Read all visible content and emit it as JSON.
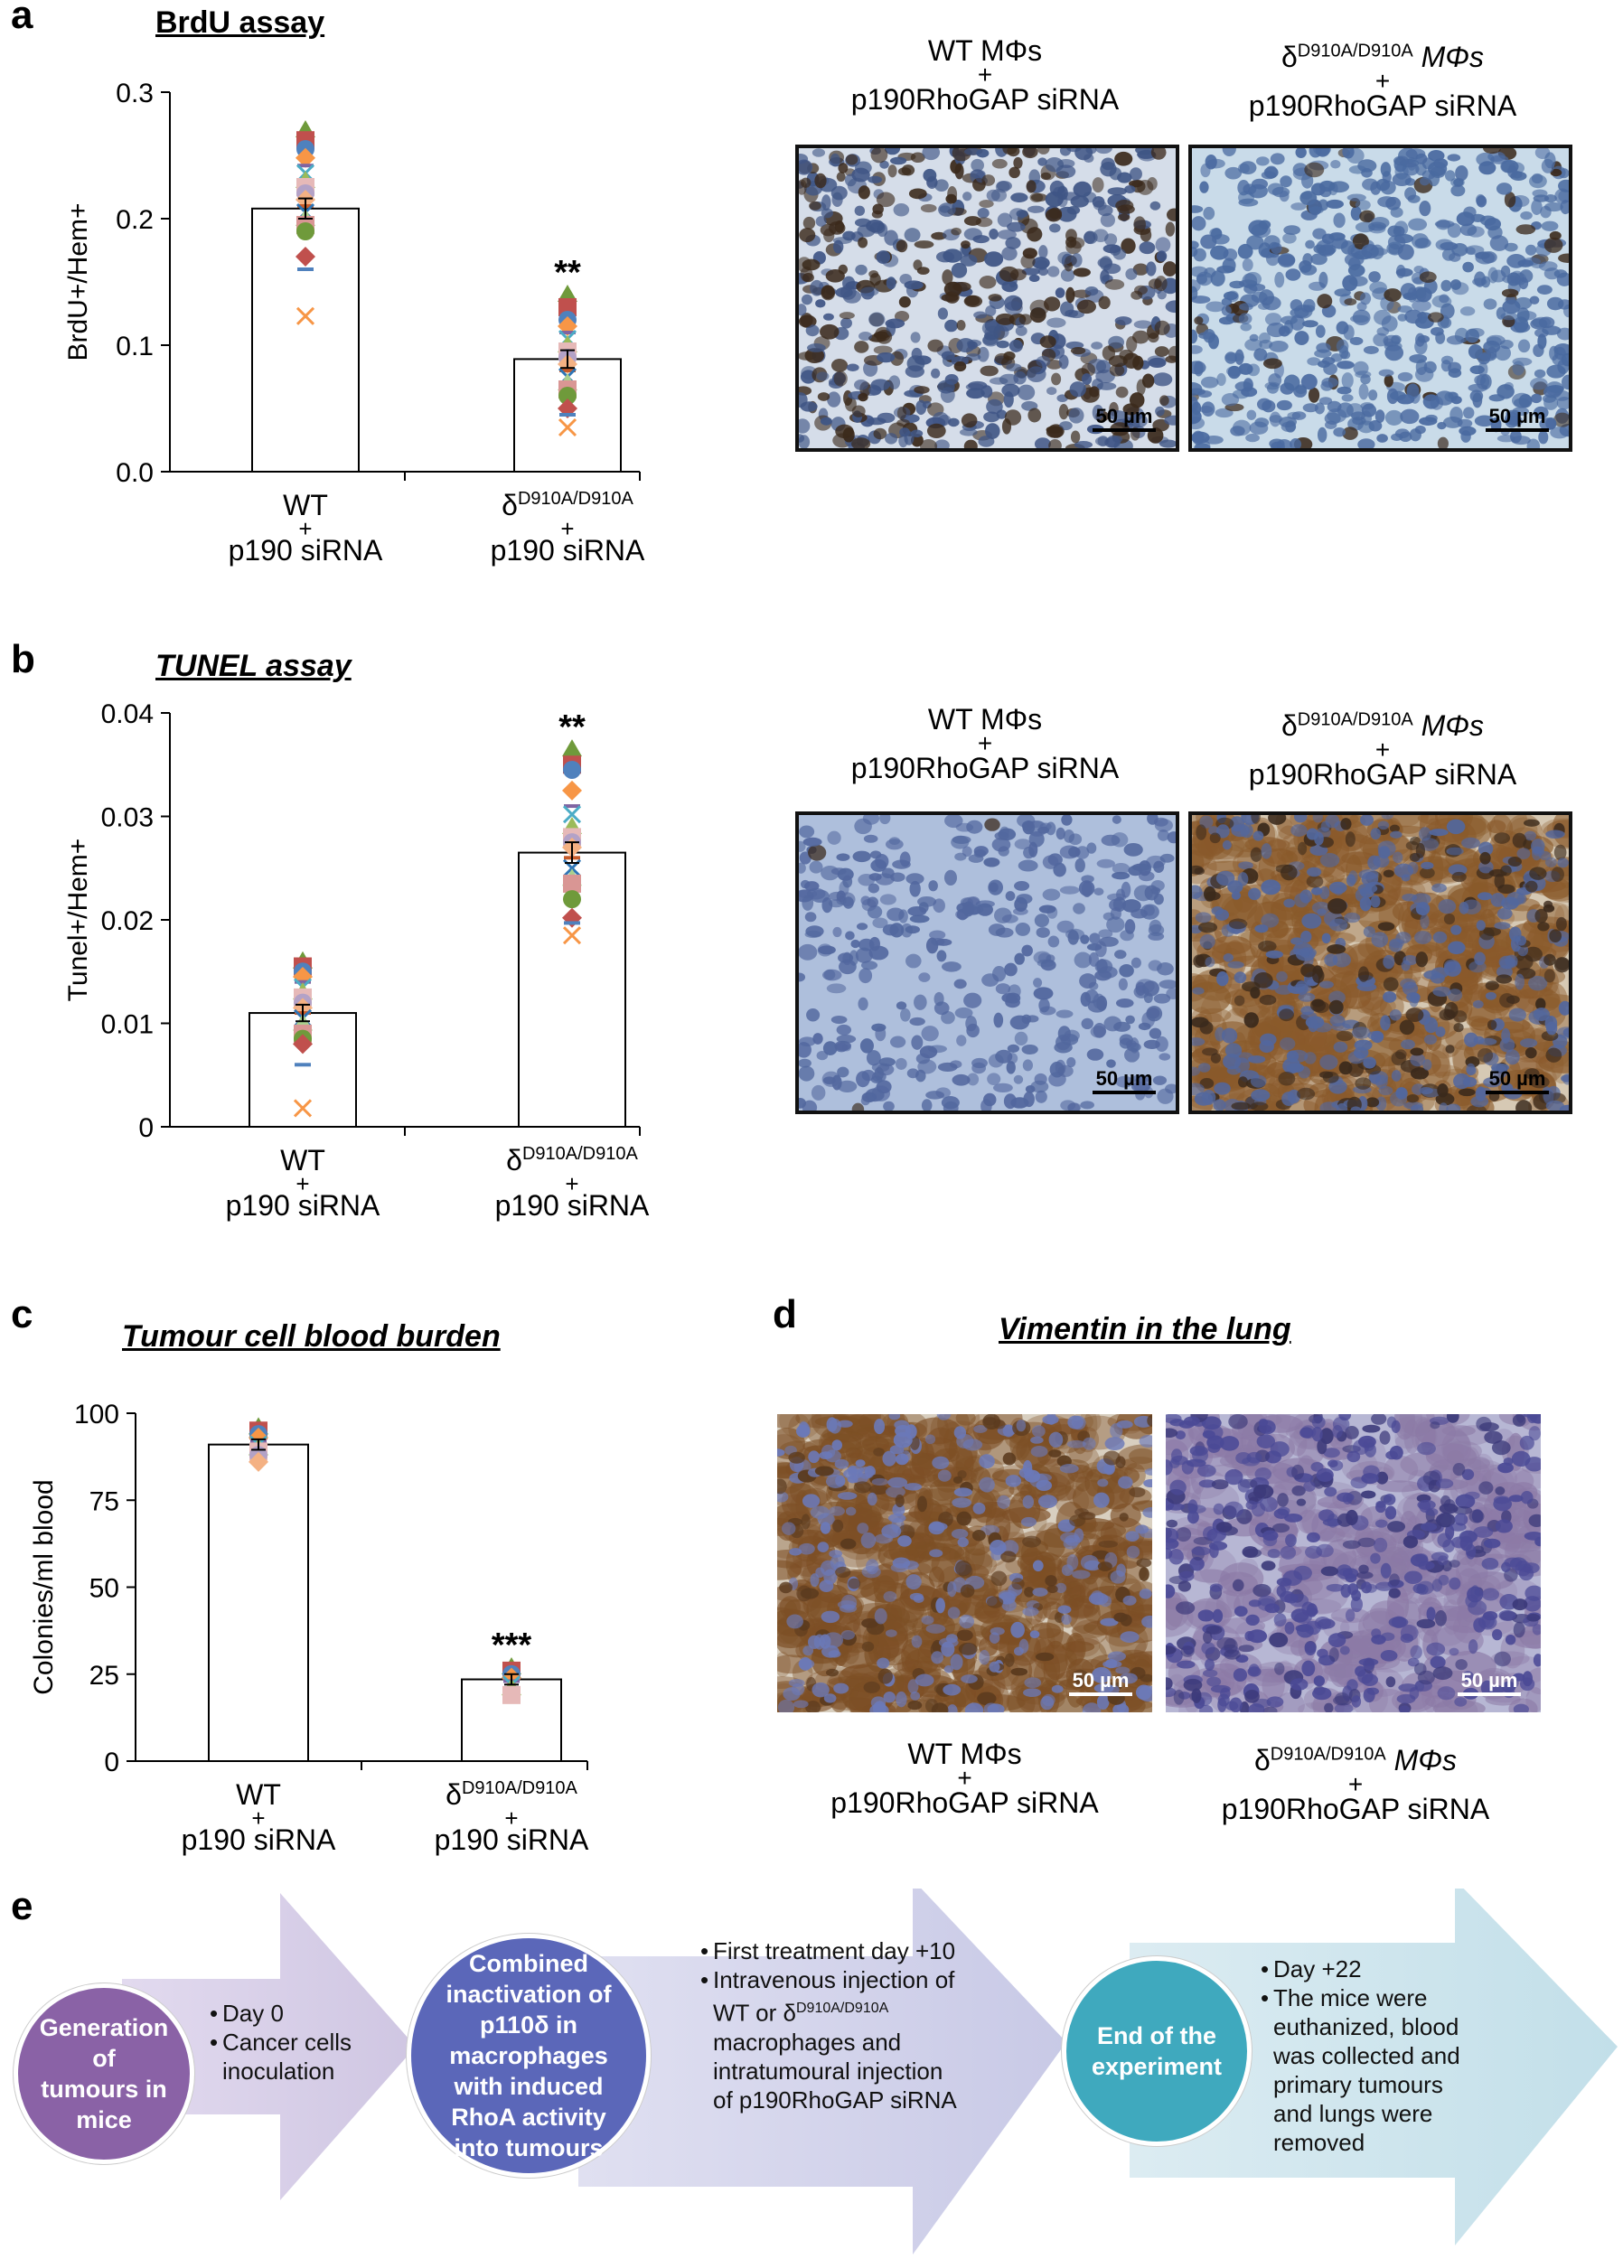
{
  "panels": {
    "a": {
      "letter": "a",
      "title": "BrdU assay",
      "micrograph_captions": [
        {
          "line1": "WT MΦs",
          "plus": "+",
          "line2": "p190RhoGAP siRNA"
        },
        {
          "sup": "δ",
          "supscript": "D910A/D910A",
          "line1": " MΦs",
          "plus": "+",
          "line2": "p190RhoGAP siRNA"
        }
      ],
      "scale_label": "50 µm"
    },
    "b": {
      "letter": "b",
      "title": "TUNEL assay",
      "micrograph_captions": [
        {
          "line1": "WT MΦs",
          "plus": "+",
          "line2": "p190RhoGAP siRNA"
        },
        {
          "sup": "δ",
          "supscript": "D910A/D910A",
          "line1": " MΦs",
          "plus": "+",
          "line2": "p190RhoGAP siRNA"
        }
      ],
      "scale_label": "50 µm"
    },
    "c": {
      "letter": "c",
      "title": "Tumour cell blood burden"
    },
    "d": {
      "letter": "d",
      "title": "Vimentin in the lung",
      "micrograph_captions": [
        {
          "line1": "WT MΦs",
          "plus": "+",
          "line2": "p190RhoGAP siRNA"
        },
        {
          "sup": "δ",
          "supscript": "D910A/D910A",
          "line1": " MΦs",
          "plus": "+",
          "line2": "p190RhoGAP siRNA"
        }
      ],
      "scale_label": "50 µm"
    },
    "e": {
      "letter": "e",
      "circles": [
        {
          "text": [
            "Generation",
            "of",
            "tumours in",
            "mice"
          ],
          "color": "#8a62a6"
        },
        {
          "text": [
            "Combined",
            "inactivation of",
            "p110δ in",
            "macrophages",
            "with induced",
            "RhoA activity",
            "into tumours"
          ],
          "color": "#5b67b9"
        },
        {
          "text": [
            "End of the",
            "experiment"
          ],
          "color": "#3fa9be"
        }
      ],
      "steps": [
        {
          "items": [
            "Day 0",
            "Cancer cells inoculation"
          ]
        },
        {
          "items": [
            "First treatment day +10",
            "Intravenous injection of WT or δD910A/D910A macrophages and intratumoural injection of p190RhoGAP siRNA"
          ]
        },
        {
          "items": [
            "Day +22",
            "The mice were euthanized, blood was collected and primary tumours and lungs were removed"
          ]
        }
      ]
    }
  },
  "chart_data": [
    {
      "type": "bar",
      "ylabel": "BrdU+/Hem+",
      "ylim": [
        0,
        0.3
      ],
      "yticks": [
        "0.0",
        "0.1",
        "0.2",
        "0.3"
      ],
      "categories": [
        {
          "line1": "WT",
          "plus": "+",
          "line2": "p190 siRNA"
        },
        {
          "line1": "δD910A/D910A",
          "plus": "+",
          "line2": "p190 siRNA"
        }
      ],
      "values": [
        0.208,
        0.089
      ],
      "errors": [
        0.008,
        0.007
      ],
      "significance": [
        "",
        "**"
      ],
      "points": [
        [
          0.27,
          0.262,
          0.255,
          0.248,
          0.242,
          0.236,
          0.23,
          0.225,
          0.22,
          0.215,
          0.21,
          0.205,
          0.2,
          0.195,
          0.19,
          0.17,
          0.16,
          0.123
        ],
        [
          0.14,
          0.13,
          0.12,
          0.115,
          0.11,
          0.105,
          0.1,
          0.095,
          0.09,
          0.085,
          0.08,
          0.075,
          0.07,
          0.065,
          0.06,
          0.05,
          0.045,
          0.035
        ]
      ]
    },
    {
      "type": "bar",
      "ylabel": "Tunel+/Hem+",
      "ylim": [
        0,
        0.04
      ],
      "yticks": [
        "0",
        "0.01",
        "0.02",
        "0.03",
        "0.04"
      ],
      "categories": [
        {
          "line1": "WT",
          "plus": "+",
          "line2": "p190 siRNA"
        },
        {
          "line1": "δD910A/D910A",
          "plus": "+",
          "line2": "p190 siRNA"
        }
      ],
      "values": [
        0.011,
        0.0265
      ],
      "errors": [
        0.0008,
        0.001
      ],
      "significance": [
        "",
        "**"
      ],
      "points": [
        [
          0.016,
          0.0155,
          0.015,
          0.0145,
          0.014,
          0.0135,
          0.013,
          0.0125,
          0.012,
          0.0115,
          0.011,
          0.0105,
          0.01,
          0.009,
          0.0085,
          0.008,
          0.006,
          0.0018
        ],
        [
          0.0365,
          0.035,
          0.0345,
          0.0325,
          0.031,
          0.0302,
          0.029,
          0.028,
          0.0275,
          0.027,
          0.026,
          0.025,
          0.024,
          0.0235,
          0.022,
          0.0202,
          0.0197,
          0.0185
        ]
      ]
    },
    {
      "type": "bar",
      "ylabel": "Colonies/ml blood",
      "ylim": [
        0,
        100
      ],
      "yticks": [
        "0",
        "25",
        "50",
        "75",
        "100"
      ],
      "categories": [
        {
          "line1": "WT",
          "plus": "+",
          "line2": "p190 siRNA"
        },
        {
          "line1": "δD910A/D910A",
          "plus": "+",
          "line2": "p190 siRNA"
        }
      ],
      "values": [
        91,
        23.5
      ],
      "errors": [
        1.5,
        1.5
      ],
      "significance": [
        "",
        "***"
      ],
      "points": [
        [
          96,
          95,
          94,
          93,
          92,
          91,
          90,
          89,
          88,
          86
        ],
        [
          27,
          26,
          25,
          24,
          23,
          22,
          21,
          19
        ]
      ]
    }
  ],
  "colors": {
    "marker_palette": [
      "#6f9a3b",
      "#c0504d",
      "#4f81bd",
      "#f79646",
      "#8064a2",
      "#4bacc6",
      "#9bbb59",
      "#e6b9b8",
      "#b3a2c7",
      "#f4b183",
      "#c75b2a",
      "#2e75b6",
      "#a9d18e",
      "#d99694"
    ],
    "ihc_blue": "#7e97c6",
    "ihc_brown": "#8a5a2b"
  }
}
